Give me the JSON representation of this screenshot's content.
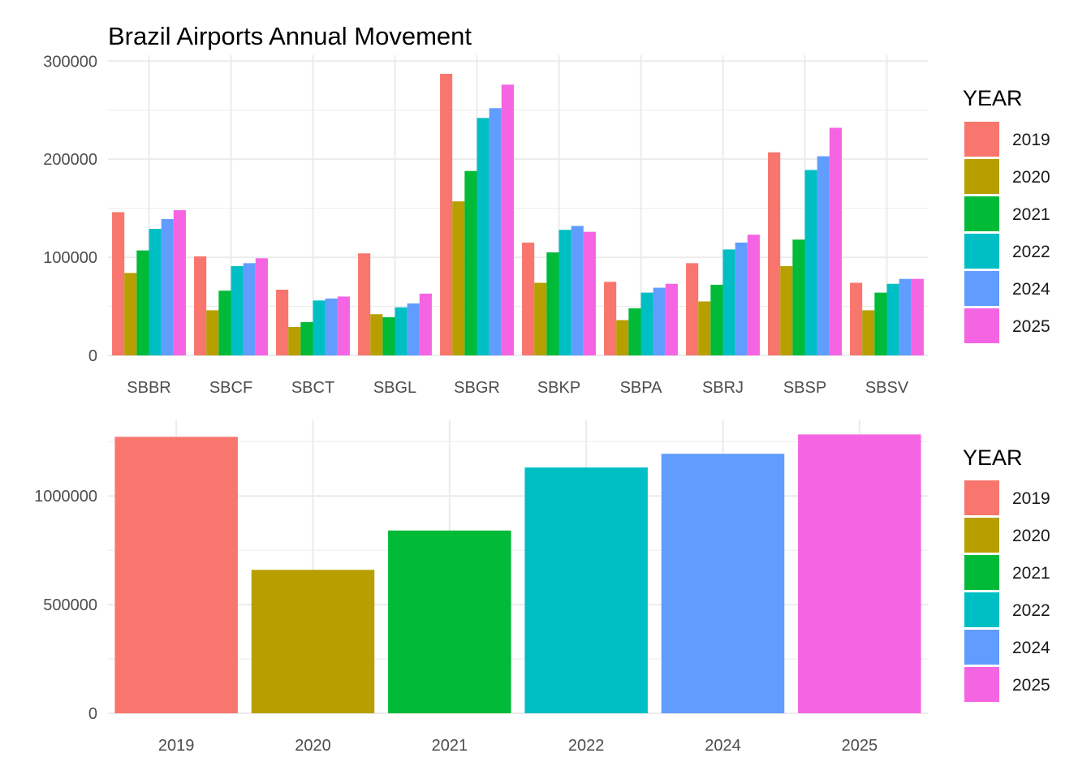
{
  "title": "Brazil Airports Annual Movement",
  "palette": {
    "2019": "#F8766D",
    "2020": "#B79F00",
    "2021": "#00BA38",
    "2022": "#00BFC4",
    "2024": "#619CFF",
    "2025": "#F564E3"
  },
  "chart_data": [
    {
      "type": "bar",
      "title": "Brazil Airports Annual Movement",
      "xlabel": "",
      "ylabel": "",
      "ylim": [
        0,
        300000
      ],
      "y_ticks": [
        0,
        100000,
        200000,
        300000
      ],
      "y_tick_labels": [
        "0",
        "100000",
        "200000",
        "300000"
      ],
      "categories": [
        "SBBR",
        "SBCF",
        "SBCT",
        "SBGL",
        "SBGR",
        "SBKP",
        "SBPA",
        "SBRJ",
        "SBSP",
        "SBSV"
      ],
      "legend_title": "YEAR",
      "legend_position": "right",
      "grid": true,
      "series": [
        {
          "name": "2019",
          "values": [
            146000,
            101000,
            67000,
            104000,
            287000,
            115000,
            75000,
            94000,
            207000,
            74000
          ]
        },
        {
          "name": "2020",
          "values": [
            84000,
            46000,
            29000,
            42000,
            157000,
            74000,
            36000,
            55000,
            91000,
            46000
          ]
        },
        {
          "name": "2021",
          "values": [
            107000,
            66000,
            34000,
            39000,
            188000,
            105000,
            48000,
            72000,
            118000,
            64000
          ]
        },
        {
          "name": "2022",
          "values": [
            129000,
            91000,
            56000,
            49000,
            242000,
            128000,
            64000,
            108000,
            189000,
            73000
          ]
        },
        {
          "name": "2024",
          "values": [
            139000,
            94000,
            58000,
            53000,
            252000,
            132000,
            69000,
            115000,
            203000,
            78000
          ]
        },
        {
          "name": "2025",
          "values": [
            148000,
            99000,
            60000,
            63000,
            276000,
            126000,
            73000,
            123000,
            232000,
            78000
          ]
        }
      ]
    },
    {
      "type": "bar",
      "title": "",
      "xlabel": "",
      "ylabel": "",
      "ylim": [
        0,
        1350000
      ],
      "y_ticks": [
        0,
        500000,
        1000000
      ],
      "y_tick_labels": [
        "0",
        "500000",
        "1000000"
      ],
      "categories": [
        "2019",
        "2020",
        "2021",
        "2022",
        "2024",
        "2025"
      ],
      "legend_title": "YEAR",
      "legend_position": "right",
      "grid": true,
      "values": [
        1272000,
        660000,
        841000,
        1131000,
        1194000,
        1283000
      ]
    }
  ]
}
